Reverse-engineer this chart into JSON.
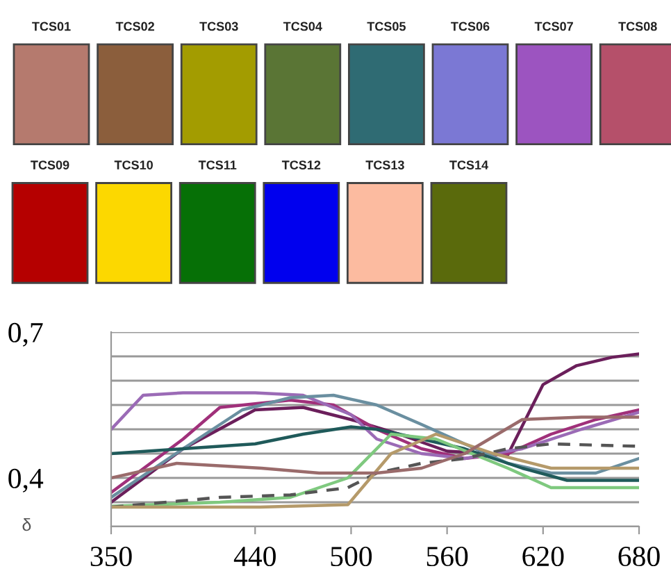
{
  "chart_data": [
    {
      "type": "other",
      "categories": [
        "TCS01",
        "TCS02",
        "TCS03",
        "TCS04",
        "TCS05",
        "TCS06",
        "TCS07",
        "TCS08",
        "TCS09",
        "TCS10",
        "TCS11",
        "TCS12",
        "TCS13",
        "TCS14"
      ],
      "colors": [
        "#b57a6e",
        "#8b5e3c",
        "#a39c00",
        "#5a7535",
        "#2f6b73",
        "#7b78d4",
        "#9c54c0",
        "#b5506a",
        "#b50000",
        "#fcd800",
        "#067006",
        "#0000ee",
        "#fcbba0",
        "#5a6a0c"
      ]
    },
    {
      "type": "line",
      "ylabel": "δ",
      "xlim": [
        350,
        680
      ],
      "ylim": [
        0.3,
        0.7
      ],
      "xticks": [
        350,
        440,
        500,
        560,
        620,
        680
      ],
      "yticks": [
        {
          "value": 0.3,
          "label": null
        },
        {
          "value": 0.35,
          "label": null
        },
        {
          "value": 0.4,
          "label": "0,4"
        },
        {
          "value": 0.45,
          "label": null
        },
        {
          "value": 0.5,
          "label": null
        },
        {
          "value": 0.55,
          "label": null
        },
        {
          "value": 0.6,
          "label": null
        },
        {
          "value": 0.65,
          "label": null
        },
        {
          "value": 0.7,
          "label": "0,7"
        }
      ],
      "grid": "y",
      "legend": false,
      "marker": "none",
      "series": [
        {
          "color": "#6b1f5b",
          "x": [
            350,
            395,
            440,
            470,
            500,
            530,
            560,
            598,
            620,
            641,
            663,
            680
          ],
          "values": [
            0.35,
            0.46,
            0.54,
            0.545,
            0.52,
            0.49,
            0.455,
            0.448,
            0.592,
            0.631,
            0.648,
            0.655
          ]
        },
        {
          "color": "#a0307a",
          "x": [
            350,
            395,
            418,
            462,
            489,
            516,
            544,
            571,
            598,
            625,
            653,
            680
          ],
          "values": [
            0.37,
            0.48,
            0.545,
            0.56,
            0.55,
            0.5,
            0.46,
            0.44,
            0.45,
            0.49,
            0.52,
            0.54
          ]
        },
        {
          "color": "#9b6bb6",
          "x": [
            350,
            370,
            395,
            440,
            470,
            500,
            516,
            544,
            571,
            607,
            644,
            680
          ],
          "values": [
            0.5,
            0.57,
            0.575,
            0.575,
            0.57,
            0.53,
            0.48,
            0.45,
            0.44,
            0.46,
            0.5,
            0.535
          ]
        },
        {
          "color": "#6a8fa0",
          "x": [
            350,
            395,
            432,
            462,
            489,
            516,
            544,
            571,
            598,
            625,
            653,
            680
          ],
          "values": [
            0.36,
            0.46,
            0.54,
            0.565,
            0.57,
            0.55,
            0.51,
            0.47,
            0.43,
            0.41,
            0.41,
            0.44
          ]
        },
        {
          "color": "#1f5a5a",
          "x": [
            350,
            395,
            440,
            470,
            500,
            516,
            544,
            571,
            607,
            635,
            680
          ],
          "values": [
            0.45,
            0.46,
            0.47,
            0.49,
            0.505,
            0.5,
            0.48,
            0.46,
            0.42,
            0.395,
            0.395
          ]
        },
        {
          "color": "#7fc97f",
          "x": [
            350,
            418,
            462,
            498,
            525,
            553,
            598,
            625,
            680
          ],
          "values": [
            0.342,
            0.35,
            0.36,
            0.4,
            0.49,
            0.48,
            0.42,
            0.38,
            0.38
          ]
        },
        {
          "color": "#555555",
          "line_style": "dashed",
          "x": [
            350,
            418,
            462,
            498,
            516,
            544,
            571,
            598,
            625,
            680
          ],
          "values": [
            0.34,
            0.36,
            0.365,
            0.38,
            0.41,
            0.43,
            0.44,
            0.46,
            0.47,
            0.465
          ]
        },
        {
          "color": "#b59a6a",
          "x": [
            350,
            443,
            498,
            525,
            553,
            589,
            625,
            680
          ],
          "values": [
            0.34,
            0.34,
            0.345,
            0.45,
            0.49,
            0.45,
            0.42,
            0.42
          ]
        },
        {
          "color": "#9a6b6b",
          "x": [
            350,
            391,
            444,
            480,
            516,
            544,
            571,
            607,
            644,
            680
          ],
          "values": [
            0.4,
            0.43,
            0.42,
            0.41,
            0.41,
            0.42,
            0.45,
            0.52,
            0.525,
            0.525
          ]
        }
      ]
    }
  ]
}
